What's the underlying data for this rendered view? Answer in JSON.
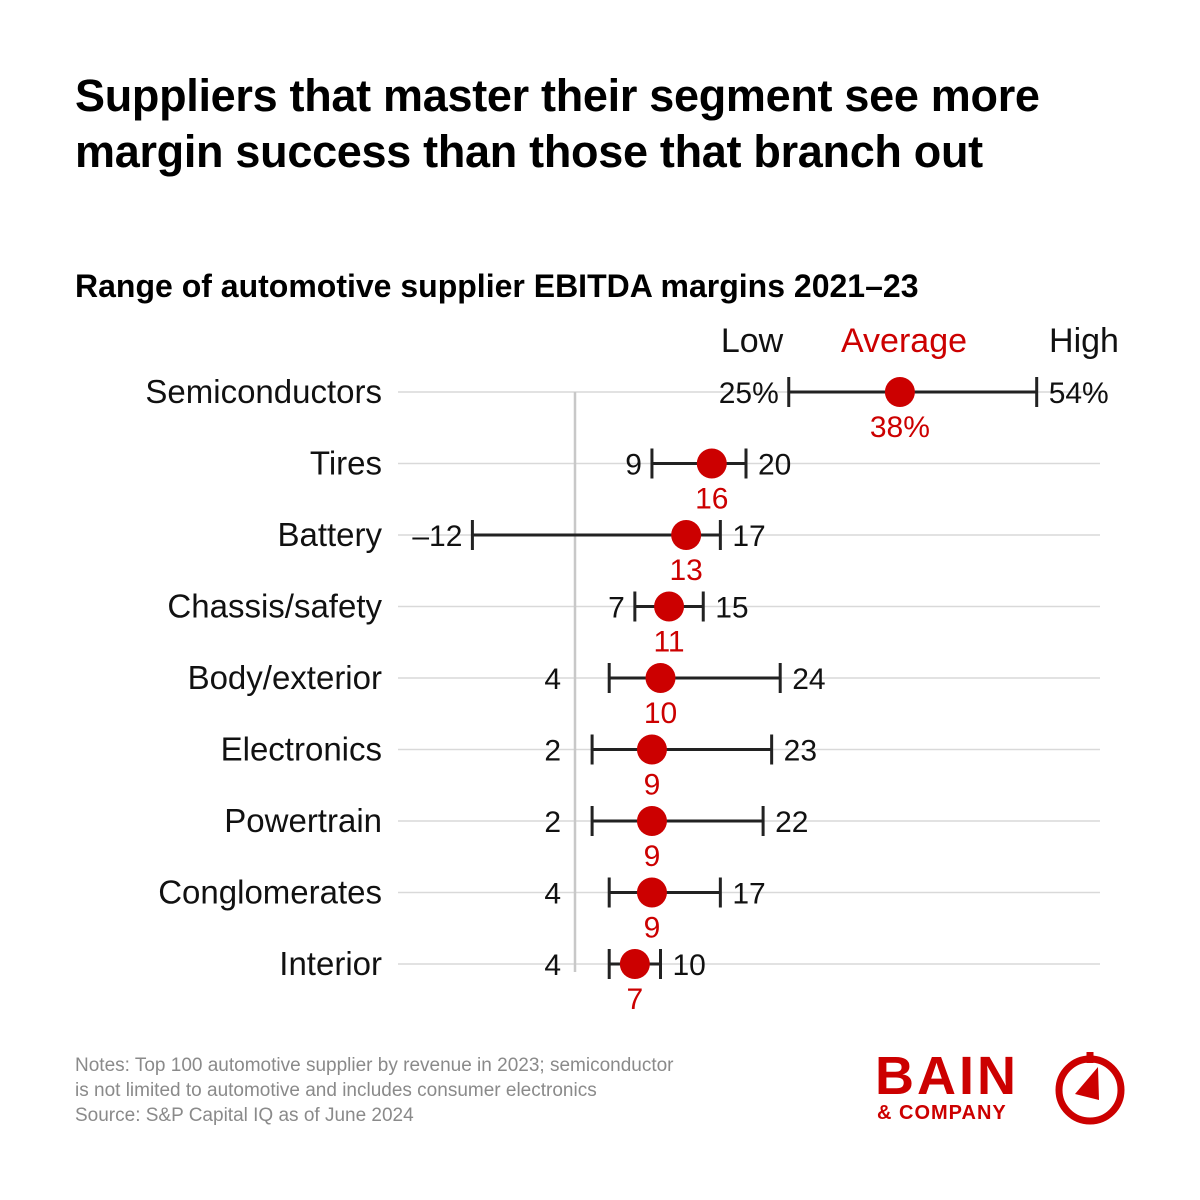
{
  "title": "Suppliers that master their segment see more margin success than those that branch out",
  "subtitle": "Range of automotive supplier EBITDA margins 2021–23",
  "legend": {
    "low": "Low",
    "average": "Average",
    "high": "High"
  },
  "colors": {
    "accent": "#cc0000",
    "whisker": "#222222",
    "grid": "#d9d9d9"
  },
  "chart_data": {
    "type": "range",
    "series": [
      {
        "name": "Low"
      },
      {
        "name": "Average"
      },
      {
        "name": "High"
      }
    ],
    "categories": [
      "Semiconductors",
      "Tires",
      "Battery",
      "Chassis/safety",
      "Body/exterior",
      "Electronics",
      "Powertrain",
      "Conglomerates",
      "Interior"
    ],
    "low": [
      25,
      9,
      -12,
      7,
      4,
      2,
      2,
      4,
      4
    ],
    "average": [
      38,
      16,
      13,
      11,
      10,
      9,
      9,
      9,
      7
    ],
    "high": [
      54,
      20,
      17,
      15,
      24,
      23,
      22,
      17,
      10
    ],
    "low_labels": [
      "25%",
      "9",
      "–12",
      "7",
      "4",
      "2",
      "2",
      "4",
      "4"
    ],
    "average_labels": [
      "38%",
      "16",
      "13",
      "11",
      "10",
      "9",
      "9",
      "9",
      "7"
    ],
    "high_labels": [
      "54%",
      "20",
      "17",
      "15",
      "24",
      "23",
      "22",
      "17",
      "10"
    ],
    "unit": "%",
    "zero_line": 0,
    "grid": true
  },
  "notes": [
    "Notes: Top 100 automotive supplier by revenue in 2023; semiconductor",
    "is not limited to automotive and includes consumer electronics",
    "Source: S&P Capital IQ as of June 2024"
  ],
  "logo": {
    "main": "BAIN",
    "sub": "& COMPANY"
  }
}
